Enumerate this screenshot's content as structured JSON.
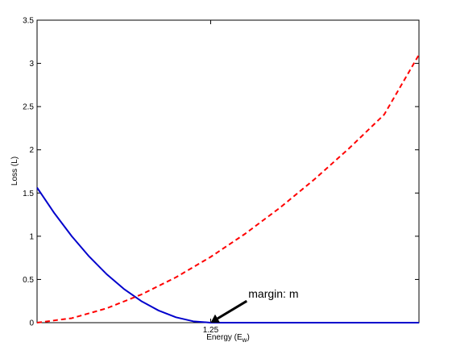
{
  "chart_data": {
    "type": "line",
    "title": "",
    "xlabel": "Energy (E",
    "xlabel_subscript": "w",
    "xlabel_suffix": ")",
    "ylabel": "Loss (L)",
    "xlim": [
      0,
      2.75
    ],
    "ylim": [
      0,
      3.5
    ],
    "xticks": [
      1.25
    ],
    "xtick_labels": [
      "1.25"
    ],
    "yticks": [
      0,
      0.5,
      1,
      1.5,
      2,
      2.5,
      3,
      3.5
    ],
    "ytick_labels": [
      "0",
      "0.5",
      "1",
      "1.5",
      "2",
      "2.5",
      "3",
      "3.5"
    ],
    "grid": false,
    "legend": null,
    "series": [
      {
        "style": "solid",
        "color": "#0000cc",
        "x": [
          0,
          0.125,
          0.25,
          0.375,
          0.5,
          0.625,
          0.75,
          0.875,
          1.0,
          1.125,
          1.25,
          1.5,
          1.75,
          2.0,
          2.25,
          2.5,
          2.75
        ],
        "y": [
          1.5625,
          1.2656,
          1.0,
          0.7656,
          0.5625,
          0.3906,
          0.25,
          0.1406,
          0.0625,
          0.0156,
          0,
          0,
          0,
          0,
          0,
          0,
          0
        ]
      },
      {
        "style": "dashed",
        "color": "#ff0000",
        "x": [
          0,
          0.25,
          0.5,
          0.75,
          1.0,
          1.25,
          1.5,
          1.75,
          2.0,
          2.25,
          2.5,
          2.75
        ],
        "y": [
          0,
          0.0518,
          0.1653,
          0.3251,
          0.5248,
          0.7607,
          1.0303,
          1.3312,
          1.6622,
          2.0217,
          2.4087,
          3.1
        ]
      }
    ],
    "annotations": [
      {
        "text": "margin: m",
        "arrow_to": [
          1.25,
          0
        ],
        "arrow_from": [
          1.51,
          0.25
        ]
      }
    ]
  }
}
